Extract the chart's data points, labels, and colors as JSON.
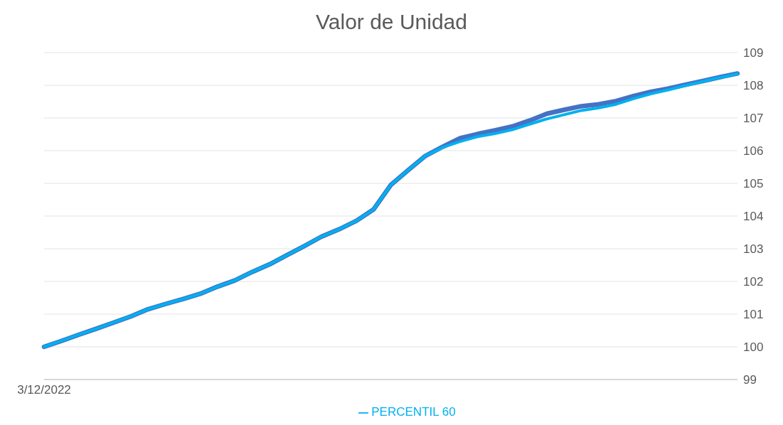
{
  "chart_data": {
    "type": "line",
    "title": "Valor de Unidad",
    "categories": [
      "3/12/2022",
      null,
      null,
      null,
      null,
      null,
      null,
      null,
      null,
      null,
      null,
      null,
      null,
      null,
      null,
      null,
      null,
      null,
      null,
      null,
      null,
      null,
      null,
      null,
      null,
      null,
      null,
      null,
      null,
      null,
      null,
      null,
      null,
      null,
      null,
      null,
      null,
      null,
      null,
      null,
      null
    ],
    "series": [
      {
        "color": "#4472c4",
        "values": [
          100.0,
          100.18,
          100.37,
          100.55,
          100.74,
          100.93,
          101.15,
          101.31,
          101.46,
          101.62,
          101.84,
          102.03,
          102.29,
          102.52,
          102.8,
          103.08,
          103.37,
          103.59,
          103.85,
          104.2,
          104.95,
          105.4,
          105.84,
          106.12,
          106.38,
          106.51,
          106.62,
          106.74,
          106.92,
          107.13,
          107.25,
          107.36,
          107.42,
          107.52,
          107.67,
          107.8,
          107.9,
          108.02,
          108.13,
          108.25,
          108.36
        ]
      },
      {
        "name": "PERCENTIL 60",
        "color": "#00b0f0",
        "values": [
          100.0,
          100.18,
          100.37,
          100.55,
          100.74,
          100.93,
          101.15,
          101.31,
          101.46,
          101.62,
          101.84,
          102.03,
          102.29,
          102.52,
          102.8,
          103.08,
          103.37,
          103.59,
          103.85,
          104.2,
          104.95,
          105.4,
          105.84,
          106.1,
          106.28,
          106.43,
          106.52,
          106.64,
          106.81,
          106.97,
          107.1,
          107.23,
          107.31,
          107.42,
          107.59,
          107.74,
          107.86,
          107.99,
          108.12,
          108.24,
          108.35
        ]
      }
    ],
    "ylim": [
      99,
      109
    ],
    "yticks": [
      99,
      100,
      101,
      102,
      103,
      104,
      105,
      106,
      107,
      108,
      109
    ],
    "grid": "y",
    "legend": "bottom",
    "marker": "none",
    "line_style": "solid"
  }
}
